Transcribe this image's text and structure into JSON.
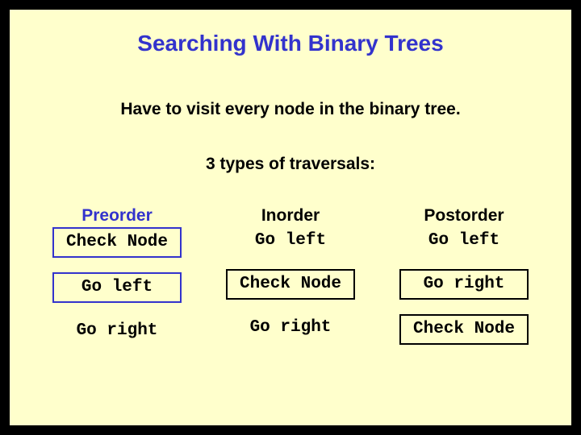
{
  "colors": {
    "outer_background": "#000000",
    "slide_background": "#ffffcc",
    "accent_blue": "#3333cc",
    "text_black": "#000000",
    "box_border": "#000000"
  },
  "typography": {
    "heading_font": "Arial, Helvetica, sans-serif",
    "step_font": "Courier New, monospace",
    "title_size_pt": 21,
    "body_size_pt": 16,
    "step_size_pt": 16,
    "weight": "bold"
  },
  "title": "Searching With Binary Trees",
  "subtitle": "Have to visit every node in the binary tree.",
  "section_label": "3 types of traversals:",
  "columns": [
    {
      "heading": "Preorder",
      "heading_color": "blue",
      "steps": [
        {
          "text": "Check Node",
          "boxed": true,
          "box_color": "blue"
        },
        {
          "text": "Go left",
          "boxed": true,
          "box_color": "blue"
        },
        {
          "text": "Go right",
          "boxed": false,
          "box_color": "black"
        }
      ]
    },
    {
      "heading": "Inorder",
      "heading_color": "black",
      "steps": [
        {
          "text": "Go left",
          "boxed": false,
          "box_color": "black"
        },
        {
          "text": "Check Node",
          "boxed": true,
          "box_color": "black"
        },
        {
          "text": "Go right",
          "boxed": false,
          "box_color": "black"
        }
      ]
    },
    {
      "heading": "Postorder",
      "heading_color": "black",
      "steps": [
        {
          "text": "Go left",
          "boxed": false,
          "box_color": "black"
        },
        {
          "text": "Go right",
          "boxed": true,
          "box_color": "black"
        },
        {
          "text": "Check Node",
          "boxed": true,
          "box_color": "black"
        }
      ]
    }
  ]
}
